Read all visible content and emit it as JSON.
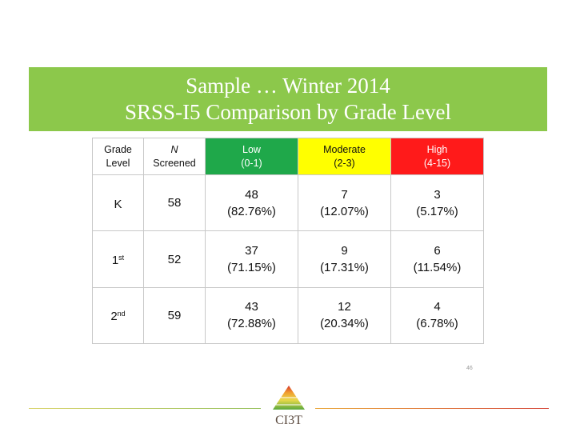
{
  "title": {
    "line1": "Sample … Winter 2014",
    "line2": "SRSS-I5  Comparison by Grade Level"
  },
  "table": {
    "headers": {
      "grade": [
        "Grade",
        "Level"
      ],
      "n": [
        "N",
        "Screened"
      ],
      "low": [
        "Low",
        "(0-1)"
      ],
      "moderate": [
        "Moderate",
        "(2-3)"
      ],
      "high": [
        "High",
        "(4-15)"
      ]
    },
    "rows": [
      {
        "grade": "K",
        "grade_sup": "",
        "n": "58",
        "low": [
          "48",
          "(82.76%)"
        ],
        "moderate": [
          "7",
          "(12.07%)"
        ],
        "high": [
          "3",
          "(5.17%)"
        ]
      },
      {
        "grade": "1",
        "grade_sup": "st",
        "n": "52",
        "low": [
          "37",
          "(71.15%)"
        ],
        "moderate": [
          "9",
          "(17.31%)"
        ],
        "high": [
          "6",
          "(11.54%)"
        ]
      },
      {
        "grade": "2",
        "grade_sup": "nd",
        "n": "59",
        "low": [
          "43",
          "(72.88%)"
        ],
        "moderate": [
          "12",
          "(20.34%)"
        ],
        "high": [
          "4",
          "(6.78%)"
        ]
      }
    ]
  },
  "colors": {
    "title_band": "#8cc84b",
    "low": "#1fa84a",
    "moderate": "#ffff00",
    "high": "#ff1a1a"
  },
  "page_number": "46",
  "logo": {
    "icon": "ci3t-triangle-logo",
    "text": "CI3T"
  }
}
